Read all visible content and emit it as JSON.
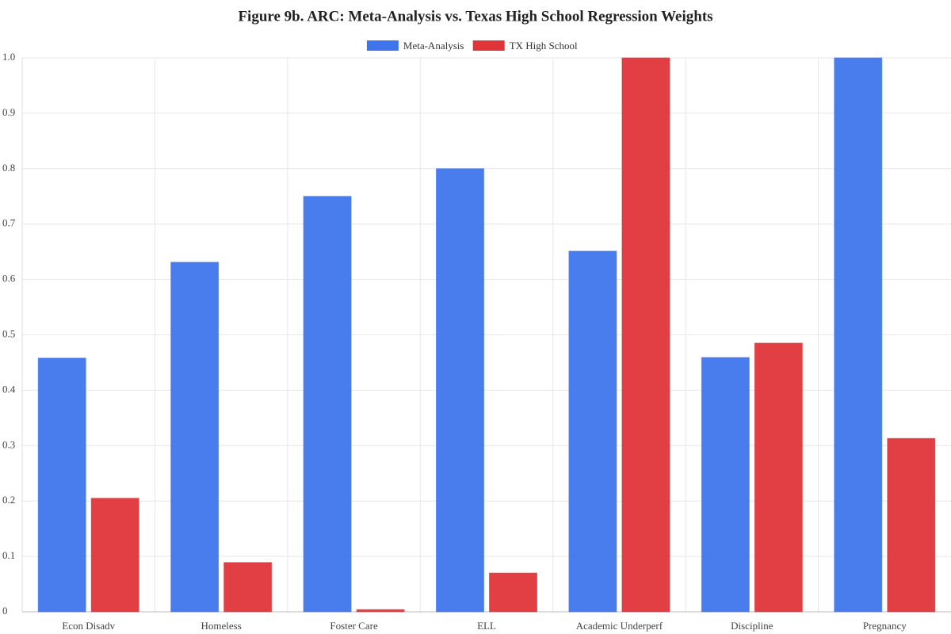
{
  "chart_data": {
    "type": "bar",
    "title": "Figure 9b. ARC: Meta-Analysis vs. Texas High School Regression Weights",
    "categories": [
      "Econ Disadv",
      "Homeless",
      "Foster Care",
      "ELL",
      "Academic Underperf",
      "Discipline",
      "Pregnancy"
    ],
    "series": [
      {
        "name": "Meta-Analysis",
        "color": "#3f75ec",
        "values": [
          0.458,
          0.631,
          0.75,
          0.8,
          0.651,
          0.459,
          1.0
        ]
      },
      {
        "name": "TX High School",
        "color": "#df3539",
        "values": [
          0.205,
          0.089,
          0.004,
          0.07,
          1.0,
          0.485,
          0.313
        ]
      }
    ],
    "ylim": [
      0,
      1
    ],
    "yticks": [
      0,
      0.1,
      0.2,
      0.3,
      0.4,
      0.5,
      0.6,
      0.7,
      0.8,
      0.9,
      {
        "value": 1,
        "label": "1.0"
      }
    ],
    "grid": true,
    "legend": "top"
  }
}
